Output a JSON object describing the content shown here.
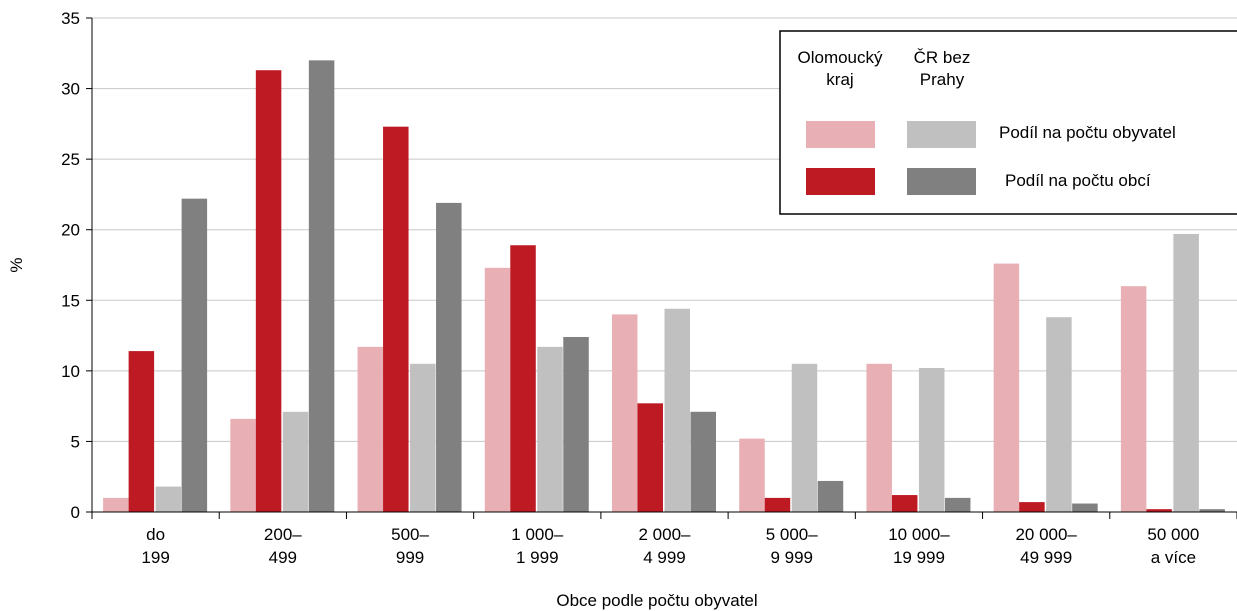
{
  "chart_data": {
    "type": "bar",
    "xlabel": "Obce podle počtu obyvatel",
    "ylabel": "%",
    "ylim": [
      0,
      35
    ],
    "yticks": [
      0,
      5,
      10,
      15,
      20,
      25,
      30,
      35
    ],
    "grid": true,
    "legend_position": "top-right",
    "categories": [
      [
        "do",
        "199"
      ],
      [
        "200–",
        "499"
      ],
      [
        "500–",
        "999"
      ],
      [
        "1 000–",
        "1 999"
      ],
      [
        "2 000–",
        "4 999"
      ],
      [
        "5 000–",
        "9 999"
      ],
      [
        "10 000–",
        "19 999"
      ],
      [
        "20 000–",
        "49 999"
      ],
      [
        "50 000",
        "a více"
      ]
    ],
    "series": [
      {
        "name": "Olomoucký kraj – Podíl na počtu obyvatel",
        "color": "#e8b0b4",
        "values": [
          1.0,
          6.6,
          11.7,
          17.3,
          14.0,
          5.2,
          10.5,
          17.6,
          16.0
        ]
      },
      {
        "name": "Olomoucký kraj – Podíl na počtu obcí",
        "color": "#be1a24",
        "values": [
          11.4,
          31.3,
          27.3,
          18.9,
          7.7,
          1.0,
          1.2,
          0.7,
          0.2
        ]
      },
      {
        "name": "ČR bez Prahy – Podíl na počtu obyvatel",
        "color": "#c0c0c0",
        "values": [
          1.8,
          7.1,
          10.5,
          11.7,
          14.4,
          10.5,
          10.2,
          13.8,
          19.7
        ]
      },
      {
        "name": "ČR bez Prahy – Podíl na počtu obcí",
        "color": "#808080",
        "values": [
          22.2,
          32.0,
          21.9,
          12.4,
          7.1,
          2.2,
          1.0,
          0.6,
          0.2
        ]
      }
    ],
    "legend": {
      "col1_lines": [
        "Olomoucký",
        "kraj"
      ],
      "col2_lines": [
        "ČR bez",
        "Prahy"
      ],
      "row1_label": "Podíl na počtu obyvatel",
      "row2_label": "Podíl na počtu obcí"
    }
  }
}
